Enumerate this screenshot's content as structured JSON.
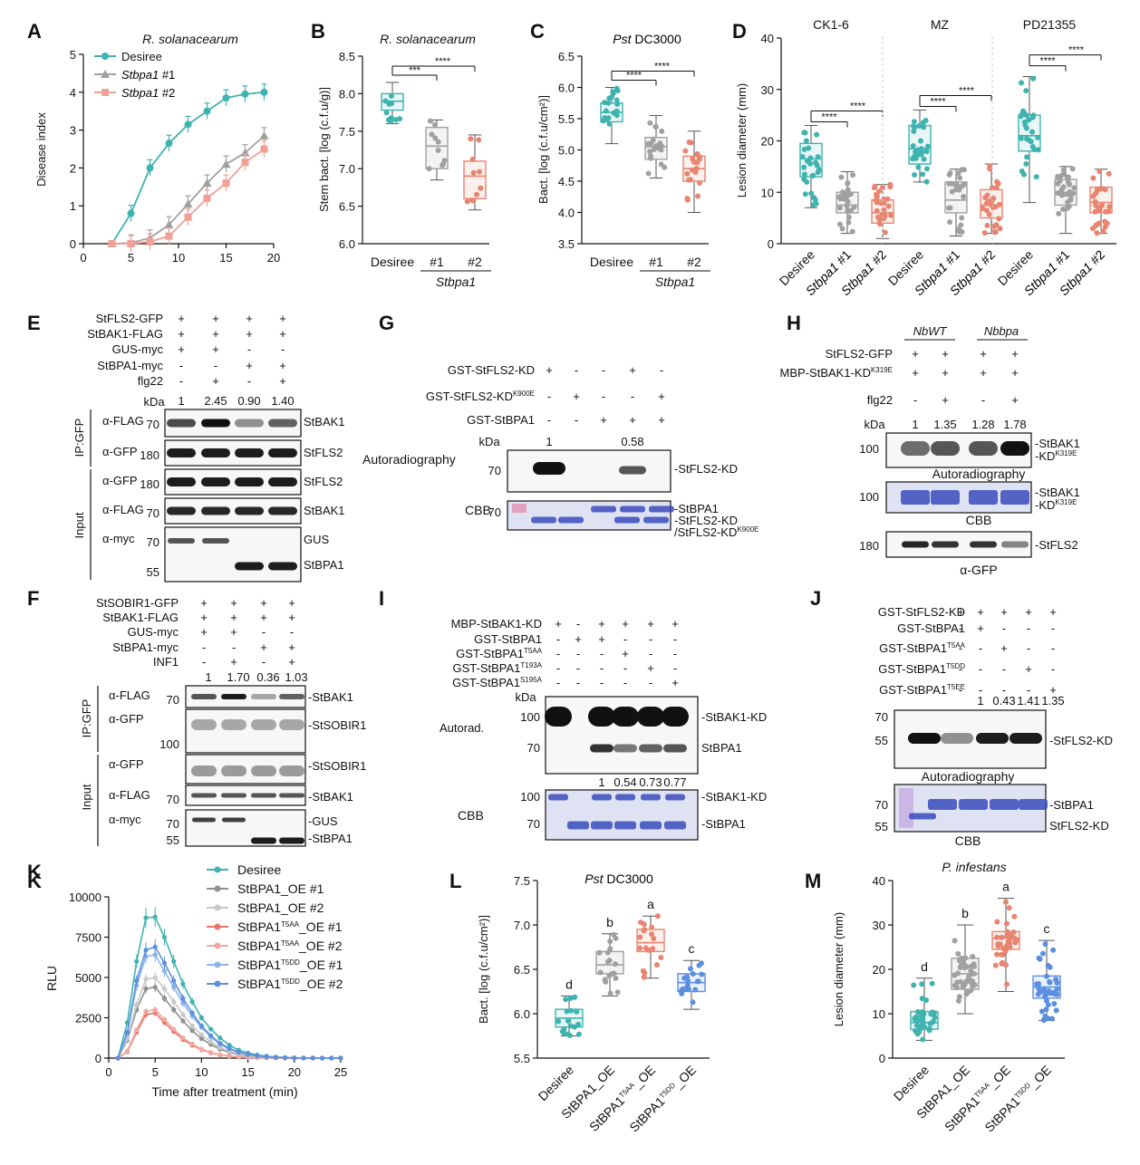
{
  "panels": {
    "A": {
      "letter": "A",
      "title": "R. solanacearum",
      "ylabel": "Disease index",
      "legend": [
        "Desiree",
        "Stbpa1 #1",
        "Stbpa1 #2"
      ],
      "colors": [
        "#3fb3b0",
        "#a0a0a0",
        "#f0a095"
      ],
      "xticks": [
        "0",
        "5",
        "10",
        "15",
        "20"
      ],
      "yticks": [
        "0",
        "1",
        "2",
        "3",
        "4",
        "5"
      ]
    },
    "B": {
      "letter": "B",
      "title": "R. solanacearum",
      "ylabel": "Stem bact. [log (c.f.u/g)]",
      "yticks": [
        "6.0",
        "6.5",
        "7.0",
        "7.5",
        "8.0",
        "8.5"
      ],
      "cats": [
        "Desiree",
        "#1",
        "#2"
      ],
      "group": "Stbpa1",
      "sig": [
        "***",
        "****"
      ]
    },
    "C": {
      "letter": "C",
      "title_italic": "Pst",
      "title_rest": " DC3000",
      "ylabel": "Bact. [log (c.f.u/cm²)]",
      "yticks": [
        "3.5",
        "4.0",
        "4.5",
        "5.0",
        "5.5",
        "6.0",
        "6.5"
      ],
      "cats": [
        "Desiree",
        "#1",
        "#2"
      ],
      "group": "Stbpa1",
      "sig": [
        "****",
        "****"
      ]
    },
    "D": {
      "letter": "D",
      "ylabel": "Lesion diameter (mm)",
      "yticks": [
        "0",
        "10",
        "20",
        "30",
        "40"
      ],
      "groups": [
        "CK1-6",
        "MZ",
        "PD21355"
      ],
      "cats": [
        "Desiree",
        "Stbpa1 #1",
        "Stbpa1 #2"
      ],
      "sig": "****"
    },
    "E": {
      "letter": "E",
      "rows": [
        "StFLS2-GFP",
        "StBAK1-FLAG",
        "GUS-myc",
        "StBPA1-myc",
        "flg22"
      ],
      "signs": [
        [
          "+",
          "+",
          "+",
          "+"
        ],
        [
          "+",
          "+",
          "+",
          "+"
        ],
        [
          "+",
          "+",
          "-",
          "-"
        ],
        [
          "-",
          "-",
          "+",
          "+"
        ],
        [
          "-",
          "+",
          "-",
          "+"
        ]
      ],
      "kda": "kDa",
      "quant": [
        "1",
        "2.45",
        "0.90",
        "1.40"
      ],
      "blots": [
        {
          "ab": "α-FLAG",
          "mw": "70",
          "label": "StBAK1"
        },
        {
          "ab": "α-GFP",
          "mw": "180",
          "label": "StFLS2"
        },
        {
          "ab": "α-GFP",
          "mw": "180",
          "label": "StFLS2"
        },
        {
          "ab": "α-FLAG",
          "mw": "70",
          "label": "StBAK1"
        },
        {
          "ab": "α-myc",
          "mw": "70",
          "label": "GUS"
        }
      ],
      "extra_mw": "55",
      "extra_label": "StBPA1",
      "ip": "IP:GFP",
      "input": "Input"
    },
    "F": {
      "letter": "F",
      "rows": [
        "StSOBIR1-GFP",
        "StBAK1-FLAG",
        "GUS-myc",
        "StBPA1-myc",
        "INF1"
      ],
      "signs": [
        [
          "+",
          "+",
          "+",
          "+"
        ],
        [
          "+",
          "+",
          "+",
          "+"
        ],
        [
          "+",
          "+",
          "-",
          "-"
        ],
        [
          "-",
          "-",
          "+",
          "+"
        ],
        [
          "-",
          "+",
          "-",
          "+"
        ]
      ],
      "quant": [
        "1",
        "1.70",
        "0.36",
        "1.03"
      ],
      "blots": [
        {
          "ab": "α-FLAG",
          "mw": "70",
          "label": "StBAK1"
        },
        {
          "ab": "α-GFP",
          "mw": "100",
          "label": "StSOBIR1"
        },
        {
          "ab": "α-GFP",
          "mw": "",
          "label": "StSOBIR1"
        },
        {
          "ab": "α-FLAG",
          "mw": "70",
          "label": "StBAK1"
        },
        {
          "ab": "α-myc",
          "mw": "70",
          "label": "GUS"
        }
      ],
      "extra_mw": "55",
      "extra_label": "StBPA1",
      "ip": "IP:GFP",
      "input": "Input"
    },
    "G": {
      "letter": "G",
      "rows": [
        "GST-StFLS2-KD",
        "GST-StFLS2-KD",
        "GST-StBPA1"
      ],
      "sup": "K900E",
      "signs": [
        [
          "+",
          "-",
          "-",
          "+",
          "-"
        ],
        [
          "-",
          "+",
          "-",
          "-",
          "+"
        ],
        [
          "-",
          "-",
          "+",
          "+",
          "+"
        ]
      ],
      "kda": "kDa",
      "quant": [
        "1",
        "0.58"
      ],
      "autorad": "Autoradiography",
      "mw": "70",
      "label": "StFLS2-KD",
      "cbb": "CBB",
      "cbb_labels": [
        "StBPA1",
        "StFLS2-KD",
        "/StFLS2-KD"
      ]
    },
    "H": {
      "letter": "H",
      "groups": [
        "NbWT",
        "Nbbpa"
      ],
      "rows": [
        "StFLS2-GFP",
        "MBP-StBAK1-KD",
        "flg22"
      ],
      "sup": "K319E",
      "signs": [
        [
          "+",
          "+",
          "+",
          "+"
        ],
        [
          "+",
          "+",
          "+",
          "+"
        ],
        [
          "-",
          "+",
          "-",
          "+"
        ]
      ],
      "quant": [
        "1",
        "1.35",
        "1.28",
        "1.78"
      ],
      "label1": "StBAK1",
      "label2": "-KD",
      "mw1": "100",
      "mw3": "180",
      "autorad": "Autoradiography",
      "cbb": "CBB",
      "label3": "StFLS2",
      "gfp": "α-GFP"
    },
    "I": {
      "letter": "I",
      "rows": [
        "MBP-StBAK1-KD",
        "GST-StBPA1",
        "GST-StBPA1",
        "GST-StBPA1",
        "GST-StBPA1"
      ],
      "sups": [
        "",
        "",
        "T5AA",
        "T193A",
        "S195A"
      ],
      "signs": [
        [
          "+",
          "-",
          "+",
          "+",
          "+",
          "+"
        ],
        [
          "-",
          "+",
          "+",
          "-",
          "-",
          "-"
        ],
        [
          "-",
          "-",
          "-",
          "+",
          "-",
          "-"
        ],
        [
          "-",
          "-",
          "-",
          "-",
          "+",
          "-"
        ],
        [
          "-",
          "-",
          "-",
          "-",
          "-",
          "+"
        ]
      ],
      "quant": [
        "1",
        "0.54",
        "0.73",
        "0.77"
      ],
      "autorad": "Autorad.",
      "cbb": "CBB",
      "mw": [
        "100",
        "70"
      ],
      "labels": [
        "StBAK1-KD",
        "StBPA1"
      ]
    },
    "J": {
      "letter": "J",
      "rows": [
        "GST-StFLS2-KD",
        "GST-StBPA1",
        "GST-StBPA1",
        "GST-StBPA1",
        "GST-StBPA1"
      ],
      "sups": [
        "",
        "",
        "T5AA",
        "T5DD",
        "T5EE"
      ],
      "signs": [
        [
          "+",
          "+",
          "+",
          "+",
          "+"
        ],
        [
          "-",
          "+",
          "-",
          "-",
          "-"
        ],
        [
          "-",
          "-",
          "+",
          "-",
          "-"
        ],
        [
          "-",
          "-",
          "-",
          "+",
          "-"
        ],
        [
          "-",
          "-",
          "-",
          "-",
          "+"
        ]
      ],
      "quant": [
        "1",
        "0.43",
        "1.41",
        "1.35"
      ],
      "mw": [
        "70",
        "55"
      ],
      "label": "StFLS2-KD",
      "autorad": "Autoradiography",
      "cbb": "CBB",
      "cbb_labels": [
        "StBPA1",
        "StFLS2-KD"
      ]
    },
    "K": {
      "letter": "K",
      "ylabel": "RLU",
      "xlabel": "Time after treatment (min)",
      "legend": [
        "Desiree",
        "StBPA1_OE #1",
        "StBPA1_OE #2",
        "StBPA1_OE #1",
        "StBPA1_OE #2",
        "StBPA1_OE #1",
        "StBPA1_OE #2"
      ],
      "legend_sups": [
        "",
        "",
        "",
        "T5AA",
        "T5AA",
        "T5DD",
        "T5DD"
      ],
      "colors": [
        "#3fb3b0",
        "#909090",
        "#c8c8c8",
        "#e8756a",
        "#f0a89f",
        "#8fb4ea",
        "#5b8fe0"
      ],
      "xticks": [
        "0",
        "5",
        "10",
        "15",
        "20",
        "25"
      ],
      "yticks": [
        "0",
        "2500",
        "5000",
        "7500",
        "10000"
      ]
    },
    "L": {
      "letter": "L",
      "title_italic": "Pst",
      "title_rest": " DC3000",
      "ylabel": "Bact. [log (c.f.u/cm²)]",
      "yticks": [
        "5.5",
        "6.0",
        "6.5",
        "7.0",
        "7.5"
      ],
      "cats": [
        "Desiree",
        "StBPA1_OE",
        "StBPA1_OE",
        "StBPA1_OE"
      ],
      "cat_sups": [
        "",
        "",
        "T5AA",
        "T5DD"
      ],
      "letters": [
        "d",
        "b",
        "a",
        "c"
      ]
    },
    "M": {
      "letter": "M",
      "title": "P. infestans",
      "ylabel": "Lesion diameter (mm)",
      "yticks": [
        "0",
        "10",
        "20",
        "30",
        "40"
      ],
      "cats": [
        "Desiree",
        "StBPA1_OE",
        "StBPA1_OE",
        "StBPA1_OE"
      ],
      "cat_sups": [
        "",
        "",
        "T5AA",
        "T5DD"
      ],
      "letters": [
        "d",
        "b",
        "a",
        "c"
      ]
    }
  },
  "chart_data": [
    {
      "type": "line",
      "panel": "A",
      "title": "R. solanacearum",
      "xlabel": "",
      "ylabel": "Disease index",
      "xlim": [
        0,
        20
      ],
      "ylim": [
        0,
        5
      ],
      "series": [
        {
          "name": "Desiree",
          "x": [
            3,
            5,
            7,
            9,
            11,
            13,
            15,
            17,
            19
          ],
          "values": [
            0,
            0.8,
            2.0,
            2.65,
            3.15,
            3.5,
            3.85,
            3.95,
            4.0
          ]
        },
        {
          "name": "Stbpa1 #1",
          "x": [
            3,
            5,
            7,
            9,
            11,
            13,
            15,
            17,
            19
          ],
          "values": [
            0,
            0.02,
            0.15,
            0.5,
            1.05,
            1.6,
            2.1,
            2.4,
            2.85
          ]
        },
        {
          "name": "Stbpa1 #2",
          "x": [
            3,
            5,
            7,
            9,
            11,
            13,
            15,
            17,
            19
          ],
          "values": [
            0,
            0,
            0.05,
            0.2,
            0.7,
            1.2,
            1.6,
            2.15,
            2.5
          ]
        }
      ]
    },
    {
      "type": "box",
      "panel": "B",
      "ylim": [
        6.0,
        8.5
      ],
      "categories": [
        "Desiree",
        "Stbpa1 #1",
        "Stbpa1 #2"
      ],
      "medians": [
        7.9,
        7.3,
        6.9
      ],
      "q1": [
        7.78,
        7.0,
        6.6
      ],
      "q3": [
        8.0,
        7.55,
        7.1
      ],
      "min": [
        7.6,
        6.85,
        6.45
      ],
      "max": [
        8.15,
        7.65,
        7.45
      ]
    },
    {
      "type": "box",
      "panel": "C",
      "ylim": [
        3.5,
        6.5
      ],
      "categories": [
        "Desiree",
        "Stbpa1 #1",
        "Stbpa1 #2"
      ],
      "medians": [
        5.6,
        5.05,
        4.7
      ],
      "q1": [
        5.45,
        4.85,
        4.5
      ],
      "q3": [
        5.75,
        5.2,
        4.9
      ],
      "min": [
        5.1,
        4.55,
        4.0
      ],
      "max": [
        6.0,
        5.55,
        5.3
      ]
    },
    {
      "type": "box",
      "panel": "D",
      "ylim": [
        0,
        40
      ],
      "groups": [
        "CK1-6",
        "MZ",
        "PD21355"
      ],
      "categories": [
        "Desiree",
        "Stbpa1 #1",
        "Stbpa1 #2"
      ],
      "medians": [
        [
          16.5,
          7.5,
          6.0
        ],
        [
          18.5,
          8.5,
          7.5
        ],
        [
          21.0,
          10.0,
          8.0
        ]
      ],
      "q1": [
        [
          13,
          6,
          4
        ],
        [
          15.5,
          6,
          5
        ],
        [
          18,
          7.5,
          6
        ]
      ],
      "q3": [
        [
          19.5,
          10,
          8.5
        ],
        [
          23,
          12,
          10.5
        ],
        [
          25,
          12.5,
          11
        ]
      ],
      "min": [
        [
          7,
          2,
          1
        ],
        [
          12,
          1.5,
          2
        ],
        [
          8,
          2,
          2
        ]
      ],
      "max": [
        [
          23,
          14,
          11.5
        ],
        [
          26,
          14.5,
          15.5
        ],
        [
          32.5,
          15,
          14.5
        ]
      ]
    },
    {
      "type": "line",
      "panel": "K",
      "xlabel": "Time after treatment (min)",
      "ylabel": "RLU",
      "xlim": [
        0,
        25
      ],
      "ylim": [
        0,
        10000
      ],
      "x": [
        1,
        2,
        3,
        4,
        5,
        6,
        7,
        8,
        9,
        10,
        11,
        12,
        13,
        14,
        15,
        16,
        17,
        18,
        19,
        20,
        21,
        22,
        23,
        24,
        25
      ],
      "series": [
        {
          "name": "Desiree",
          "values": [
            0,
            2200,
            6000,
            8700,
            8750,
            7500,
            6000,
            4600,
            3500,
            2500,
            1800,
            1250,
            800,
            500,
            320,
            200,
            120,
            70,
            40,
            20,
            10,
            5,
            0,
            0,
            0
          ]
        },
        {
          "name": "StBPA1_OE #1",
          "values": [
            0,
            1100,
            3000,
            4300,
            4400,
            3700,
            3000,
            2300,
            1700,
            1200,
            850,
            550,
            350,
            220,
            130,
            80,
            50,
            30,
            15,
            8,
            4,
            2,
            0,
            0,
            0
          ]
        },
        {
          "name": "StBPA1_OE #2",
          "values": [
            0,
            1200,
            3300,
            4900,
            5000,
            4300,
            3500,
            2700,
            2000,
            1450,
            1000,
            650,
            420,
            260,
            160,
            100,
            60,
            35,
            20,
            10,
            5,
            2,
            0,
            0,
            0
          ]
        },
        {
          "name": "StBPA1T5AA_OE #1",
          "values": [
            0,
            400,
            1600,
            2700,
            2800,
            2200,
            1650,
            1150,
            800,
            520,
            330,
            200,
            120,
            70,
            40,
            20,
            10,
            5,
            0,
            0,
            0,
            0,
            0,
            0,
            0
          ]
        },
        {
          "name": "StBPA1T5AA_OE #2",
          "values": [
            0,
            450,
            1750,
            2900,
            3000,
            2400,
            1800,
            1250,
            870,
            560,
            360,
            220,
            130,
            80,
            45,
            25,
            12,
            6,
            0,
            0,
            0,
            0,
            0,
            0,
            0
          ]
        },
        {
          "name": "StBPA1T5DD_OE #1",
          "values": [
            0,
            1500,
            4500,
            6300,
            6400,
            5400,
            4400,
            3400,
            2600,
            1900,
            1300,
            850,
            550,
            350,
            220,
            130,
            80,
            45,
            25,
            12,
            6,
            3,
            0,
            0,
            0
          ]
        },
        {
          "name": "StBPA1T5DD_OE #2",
          "values": [
            0,
            1600,
            4800,
            6700,
            6900,
            5900,
            4800,
            3700,
            2800,
            2000,
            1400,
            920,
            600,
            380,
            230,
            140,
            85,
            50,
            25,
            12,
            6,
            3,
            0,
            0,
            0
          ]
        }
      ]
    },
    {
      "type": "box",
      "panel": "L",
      "ylim": [
        5.5,
        7.5
      ],
      "categories": [
        "Desiree",
        "StBPA1_OE",
        "StBPA1T5AA_OE",
        "StBPA1T5DD_OE"
      ],
      "medians": [
        5.95,
        6.55,
        6.8,
        6.35
      ],
      "q1": [
        5.85,
        6.45,
        6.7,
        6.25
      ],
      "q3": [
        6.05,
        6.7,
        6.95,
        6.45
      ],
      "min": [
        5.75,
        6.2,
        6.4,
        6.05
      ],
      "max": [
        6.2,
        6.9,
        7.1,
        6.6
      ],
      "letters": [
        "d",
        "b",
        "a",
        "c"
      ]
    },
    {
      "type": "box",
      "panel": "M",
      "ylim": [
        0,
        40
      ],
      "categories": [
        "Desiree",
        "StBPA1_OE",
        "StBPA1T5AA_OE",
        "StBPA1T5DD_OE"
      ],
      "medians": [
        8,
        19,
        27,
        16
      ],
      "q1": [
        6.5,
        15.5,
        24.5,
        13.5
      ],
      "q3": [
        10.5,
        22.5,
        28.5,
        18.5
      ],
      "min": [
        4,
        10,
        15,
        8.5
      ],
      "max": [
        18,
        30,
        36,
        26.5
      ],
      "letters": [
        "d",
        "b",
        "a",
        "c"
      ]
    }
  ]
}
